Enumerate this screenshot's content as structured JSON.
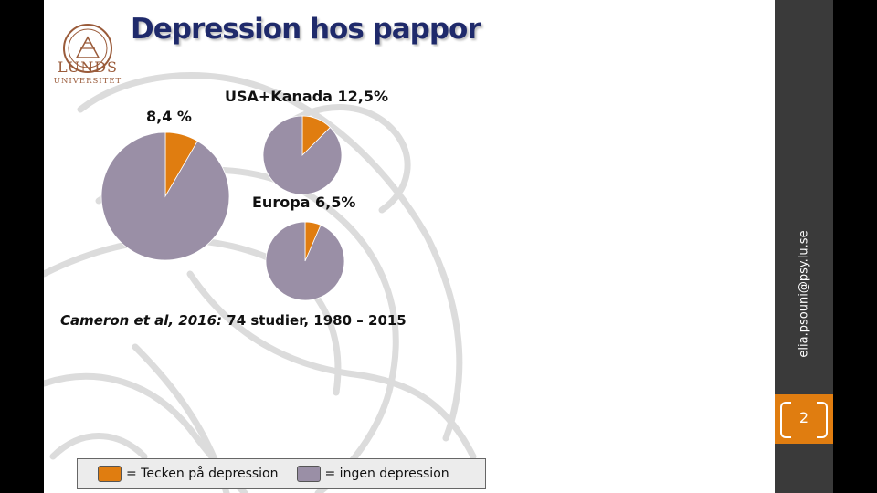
{
  "slide": {
    "title": "Depression hos pappor",
    "logo": {
      "line1": "LUNDS",
      "line2": "UNIVERSITET"
    },
    "citation": {
      "author": "Cameron et al, 2016:",
      "rest": " 74 studier, 1980 – 2015"
    },
    "legend": {
      "depression_label": "= Tecken på depression",
      "none_label": "= ingen depression"
    },
    "email": "elia.psouni@psy.lu.se",
    "page_number": "2"
  },
  "colors": {
    "depression": "#e07d10",
    "none": "#9a8fa6",
    "title": "#1f2a6b",
    "sidebar": "#3a3a3a",
    "accent": "#e07d10"
  },
  "chart_data": [
    {
      "type": "pie",
      "title": "8,4 %",
      "labels": [
        "Tecken på depression",
        "ingen depression"
      ],
      "values": [
        8.4,
        91.6
      ]
    },
    {
      "type": "pie",
      "title": "USA+Kanada 12,5%",
      "labels": [
        "Tecken på depression",
        "ingen depression"
      ],
      "values": [
        12.5,
        87.5
      ]
    },
    {
      "type": "pie",
      "title": "Europa 6,5%",
      "labels": [
        "Tecken på depression",
        "ingen depression"
      ],
      "values": [
        6.5,
        93.5
      ]
    }
  ]
}
